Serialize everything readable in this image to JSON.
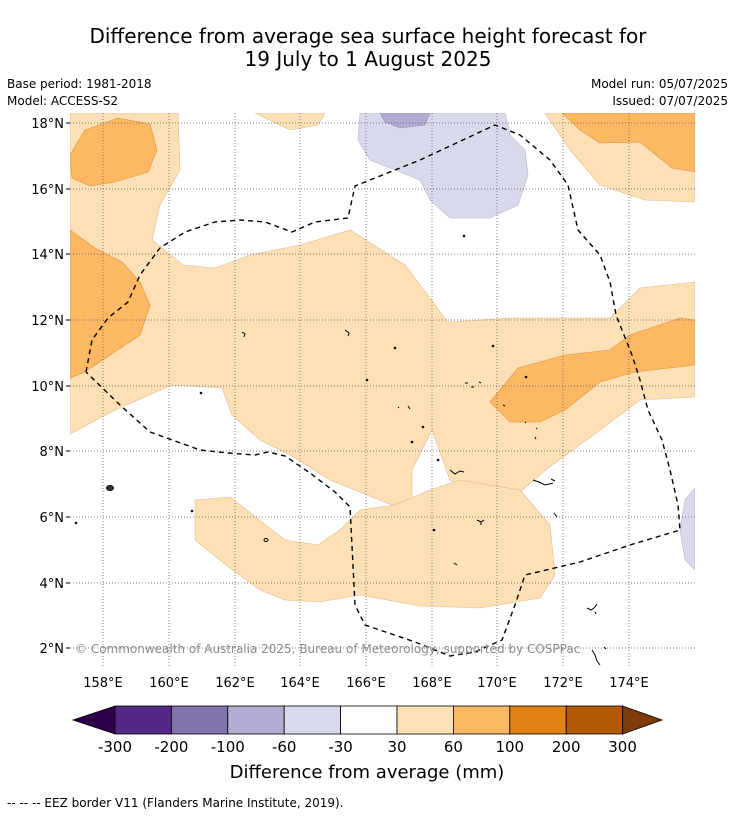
{
  "header": {
    "title_line1": "Difference from average sea surface height forecast for",
    "title_line2": "19 July to 1 August 2025",
    "base_period": "Base period: 1981-2018",
    "model": "Model: ACCESS-S2",
    "model_run": "Model run: 05/07/2025",
    "issued": "Issued: 07/07/2025"
  },
  "map": {
    "lat_labels": [
      "18°N",
      "16°N",
      "14°N",
      "12°N",
      "10°N",
      "8°N",
      "6°N",
      "4°N",
      "2°N"
    ],
    "lon_labels": [
      "158°E",
      "160°E",
      "162°E",
      "164°E",
      "166°E",
      "168°E",
      "170°E",
      "172°E",
      "174°E"
    ],
    "copyright": "© Commonwealth of Australia 2025, Bureau of Meteorology, supported by COSPPac"
  },
  "colorbar": {
    "tick_labels": [
      "-300",
      "-200",
      "-100",
      "-60",
      "-30",
      "30",
      "60",
      "100",
      "200",
      "300"
    ],
    "title": "Difference from average (mm)",
    "colors": {
      "under": "#2d004b",
      "c1": "#542788",
      "c2": "#8073ac",
      "c3": "#b2abd2",
      "c4": "#d8daeb",
      "c5": "#ffffff",
      "c6": "#fee0b6",
      "c7": "#fdb863",
      "c8": "#e08214",
      "c9": "#b35806",
      "over": "#7f3b08"
    }
  },
  "footnote": "--  --  -- EEZ border V11 (Flanders Marine Institute, 2019)."
}
